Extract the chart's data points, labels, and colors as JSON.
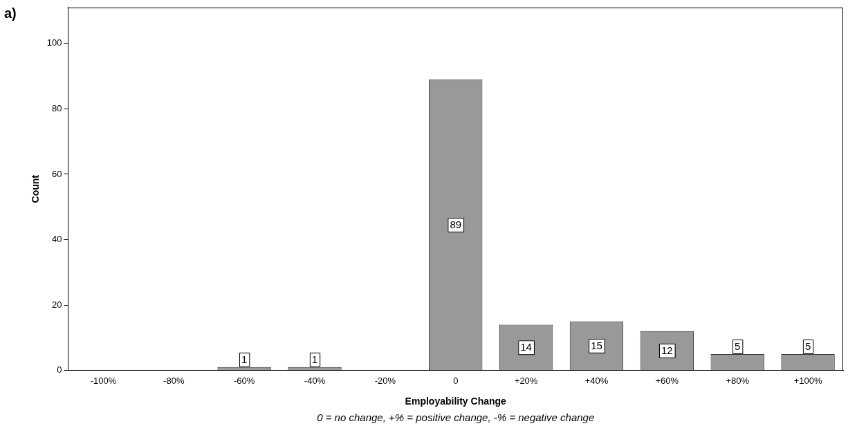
{
  "chart_data": {
    "type": "bar",
    "title": "a)",
    "xlabel": "Employability Change",
    "ylabel": "Count",
    "categories": [
      "-100%",
      "-80%",
      "-60%",
      "-40%",
      "-20%",
      "0",
      "+20%",
      "+40%",
      "+60%",
      "+80%",
      "+100%"
    ],
    "values": [
      0,
      0,
      1,
      1,
      0,
      89,
      14,
      15,
      12,
      5,
      5
    ],
    "value_labels": [
      null,
      null,
      "1",
      "1",
      null,
      "89",
      "14",
      "15",
      "12",
      "5",
      "5"
    ],
    "color": "#999999",
    "ylim": [
      0,
      111
    ],
    "yticks": [
      0,
      20,
      40,
      60,
      80,
      100
    ],
    "grid": false,
    "legend": false,
    "annotations": [
      "0 = no change, +% = positive change, -% = negative change"
    ]
  }
}
